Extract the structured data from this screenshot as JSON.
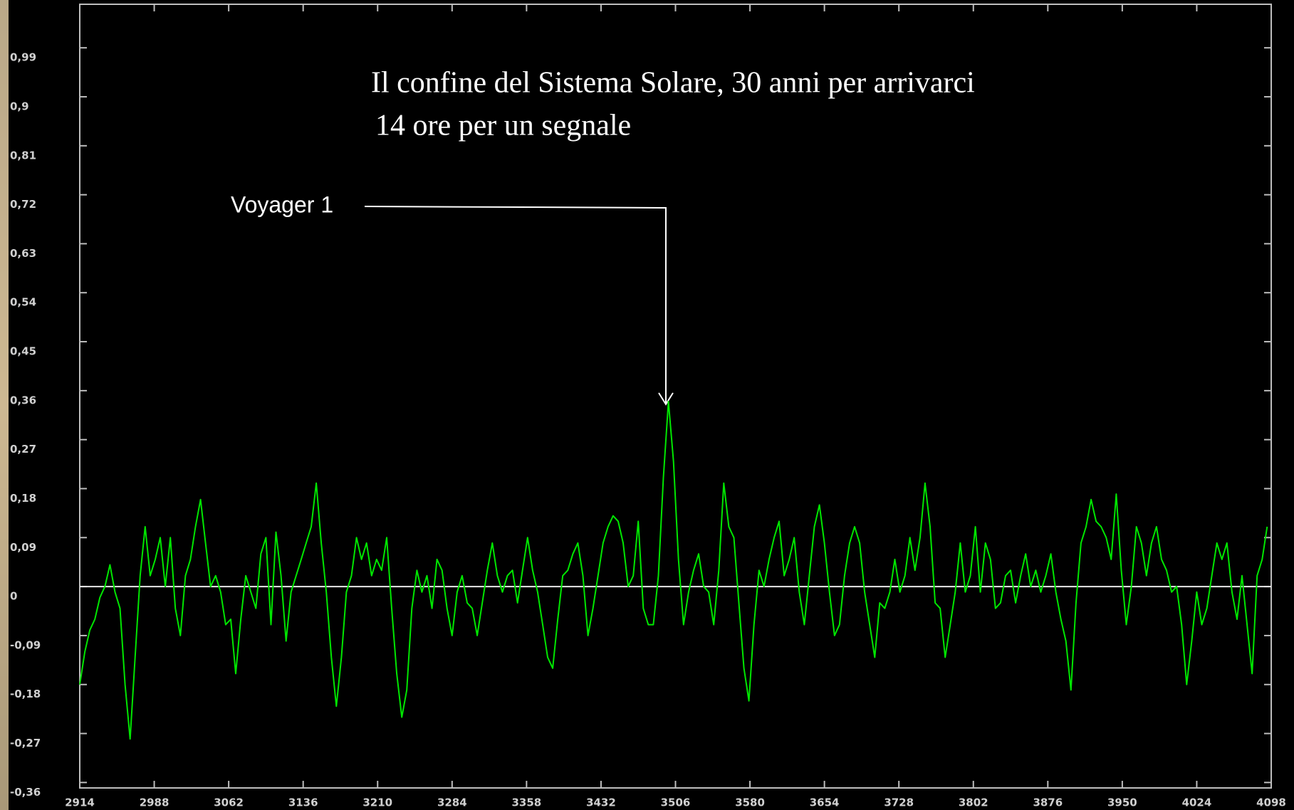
{
  "chart_data": {
    "type": "line",
    "annotations": [
      "Il confine del Sistema Solare, 30 anni per arrivarci",
      "14 ore per un segnale",
      "Voyager 1"
    ],
    "xlim": [
      2914,
      4098
    ],
    "xticks": [
      2914,
      2988,
      3062,
      3136,
      3210,
      3284,
      3358,
      3432,
      3506,
      3580,
      3654,
      3728,
      3802,
      3876,
      3950,
      4024,
      4098
    ],
    "ylim": [
      -0.37,
      1.07
    ],
    "yticks": [
      {
        "value": 0.99,
        "label": "0,99"
      },
      {
        "value": 0.9,
        "label": "0,9"
      },
      {
        "value": 0.81,
        "label": "0,81"
      },
      {
        "value": 0.72,
        "label": "0,72"
      },
      {
        "value": 0.63,
        "label": "0,63"
      },
      {
        "value": 0.54,
        "label": "0,54"
      },
      {
        "value": 0.45,
        "label": "0,45"
      },
      {
        "value": 0.36,
        "label": "0,36"
      },
      {
        "value": 0.27,
        "label": "0,27"
      },
      {
        "value": 0.18,
        "label": "0,18"
      },
      {
        "value": 0.09,
        "label": "0,09"
      },
      0,
      {
        "value": -0.09,
        "label": "-0,09"
      },
      {
        "value": -0.18,
        "label": "-0,18"
      },
      {
        "value": -0.27,
        "label": "-0,27"
      },
      {
        "value": -0.36,
        "label": "-0,36"
      }
    ],
    "zero_line": true,
    "x": [
      2914,
      2919,
      2924,
      2929,
      2934,
      2939,
      2944,
      2949,
      2954,
      2959,
      2964,
      2969,
      2974,
      2979,
      2984,
      2989,
      2994,
      2999,
      3004,
      3009,
      3014,
      3019,
      3024,
      3029,
      3034,
      3039,
      3044,
      3049,
      3054,
      3059,
      3064,
      3069,
      3074,
      3079,
      3084,
      3089,
      3094,
      3099,
      3104,
      3109,
      3114,
      3119,
      3124,
      3129,
      3134,
      3139,
      3144,
      3149,
      3154,
      3159,
      3164,
      3169,
      3174,
      3179,
      3184,
      3189,
      3194,
      3199,
      3204,
      3209,
      3214,
      3219,
      3224,
      3229,
      3234,
      3239,
      3244,
      3249,
      3254,
      3259,
      3264,
      3269,
      3274,
      3279,
      3284,
      3289,
      3294,
      3299,
      3304,
      3309,
      3314,
      3319,
      3324,
      3329,
      3334,
      3339,
      3344,
      3349,
      3354,
      3359,
      3364,
      3369,
      3374,
      3379,
      3384,
      3389,
      3394,
      3399,
      3404,
      3409,
      3414,
      3419,
      3424,
      3429,
      3434,
      3439,
      3444,
      3449,
      3454,
      3459,
      3464,
      3469,
      3474,
      3479,
      3484,
      3489,
      3494,
      3499,
      3504,
      3509,
      3514,
      3519,
      3524,
      3529,
      3534,
      3539,
      3544,
      3549,
      3554,
      3559,
      3564,
      3569,
      3574,
      3579,
      3584,
      3589,
      3594,
      3599,
      3604,
      3609,
      3614,
      3619,
      3624,
      3629,
      3634,
      3639,
      3644,
      3649,
      3654,
      3659,
      3664,
      3669,
      3674,
      3679,
      3684,
      3689,
      3694,
      3699,
      3704,
      3709,
      3714,
      3719,
      3724,
      3729,
      3734,
      3739,
      3744,
      3749,
      3754,
      3759,
      3764,
      3769,
      3774,
      3779,
      3784,
      3789,
      3794,
      3799,
      3804,
      3809,
      3814,
      3819,
      3824,
      3829,
      3834,
      3839,
      3844,
      3849,
      3854,
      3859,
      3864,
      3869,
      3874,
      3879,
      3884,
      3889,
      3894,
      3899,
      3904,
      3909,
      3914,
      3919,
      3924,
      3929,
      3934,
      3939,
      3944,
      3949,
      3954,
      3959,
      3964,
      3969,
      3974,
      3979,
      3984,
      3989,
      3994,
      3999,
      4004,
      4009,
      4014,
      4019,
      4024,
      4029,
      4034,
      4039,
      4044,
      4049,
      4054,
      4059,
      4064,
      4069,
      4074,
      4079,
      4084,
      4089,
      4094
    ],
    "series": [
      {
        "color": "#00e600",
        "values": [
          -0.18,
          -0.12,
          -0.08,
          -0.06,
          -0.02,
          0.0,
          0.04,
          -0.01,
          -0.04,
          -0.18,
          -0.28,
          -0.13,
          0.02,
          0.11,
          0.02,
          0.05,
          0.09,
          0.0,
          0.09,
          -0.04,
          -0.09,
          0.02,
          0.05,
          0.11,
          0.16,
          0.08,
          0.0,
          0.02,
          -0.01,
          -0.07,
          -0.06,
          -0.16,
          -0.06,
          0.02,
          -0.01,
          -0.04,
          0.06,
          0.09,
          -0.07,
          0.1,
          0.02,
          -0.1,
          -0.01,
          0.02,
          0.05,
          0.08,
          0.11,
          0.19,
          0.08,
          -0.01,
          -0.13,
          -0.22,
          -0.13,
          -0.01,
          0.02,
          0.09,
          0.05,
          0.08,
          0.02,
          0.05,
          0.03,
          0.09,
          -0.04,
          -0.16,
          -0.24,
          -0.19,
          -0.04,
          0.03,
          -0.01,
          0.02,
          -0.04,
          0.05,
          0.03,
          -0.04,
          -0.09,
          -0.01,
          0.02,
          -0.03,
          -0.04,
          -0.09,
          -0.03,
          0.03,
          0.08,
          0.02,
          -0.01,
          0.02,
          0.03,
          -0.03,
          0.03,
          0.09,
          0.03,
          -0.01,
          -0.07,
          -0.13,
          -0.15,
          -0.06,
          0.02,
          0.03,
          0.06,
          0.08,
          0.02,
          -0.09,
          -0.04,
          0.02,
          0.08,
          0.11,
          0.13,
          0.12,
          0.08,
          0.0,
          0.02,
          0.12,
          -0.04,
          -0.07,
          -0.07,
          0.02,
          0.2,
          0.34,
          0.23,
          0.05,
          -0.07,
          -0.01,
          0.03,
          0.06,
          0.0,
          -0.01,
          -0.07,
          0.03,
          0.19,
          0.11,
          0.09,
          -0.03,
          -0.15,
          -0.21,
          -0.07,
          0.03,
          0.0,
          0.05,
          0.09,
          0.12,
          0.02,
          0.05,
          0.09,
          -0.01,
          -0.07,
          0.02,
          0.11,
          0.15,
          0.08,
          -0.01,
          -0.09,
          -0.07,
          0.02,
          0.08,
          0.11,
          0.08,
          -0.01,
          -0.07,
          -0.13,
          -0.03,
          -0.04,
          -0.01,
          0.05,
          -0.01,
          0.02,
          0.09,
          0.03,
          0.09,
          0.19,
          0.11,
          -0.03,
          -0.04,
          -0.13,
          -0.07,
          -0.01,
          0.08,
          -0.01,
          0.02,
          0.11,
          -0.01,
          0.08,
          0.05,
          -0.04,
          -0.03,
          0.02,
          0.03,
          -0.03,
          0.02,
          0.06,
          0.0,
          0.03,
          -0.01,
          0.02,
          0.06,
          -0.01,
          -0.06,
          -0.1,
          -0.19,
          -0.03,
          0.08,
          0.11,
          0.16,
          0.12,
          0.11,
          0.09,
          0.05,
          0.17,
          0.03,
          -0.07,
          0.0,
          0.11,
          0.08,
          0.02,
          0.08,
          0.11,
          0.05,
          0.03,
          -0.01,
          0.0,
          -0.07,
          -0.18,
          -0.1,
          -0.01,
          -0.07,
          -0.04,
          0.02,
          0.08,
          0.05,
          0.08,
          -0.01,
          -0.06,
          0.02,
          -0.07,
          -0.16,
          0.02,
          0.05,
          0.11
        ]
      }
    ]
  }
}
